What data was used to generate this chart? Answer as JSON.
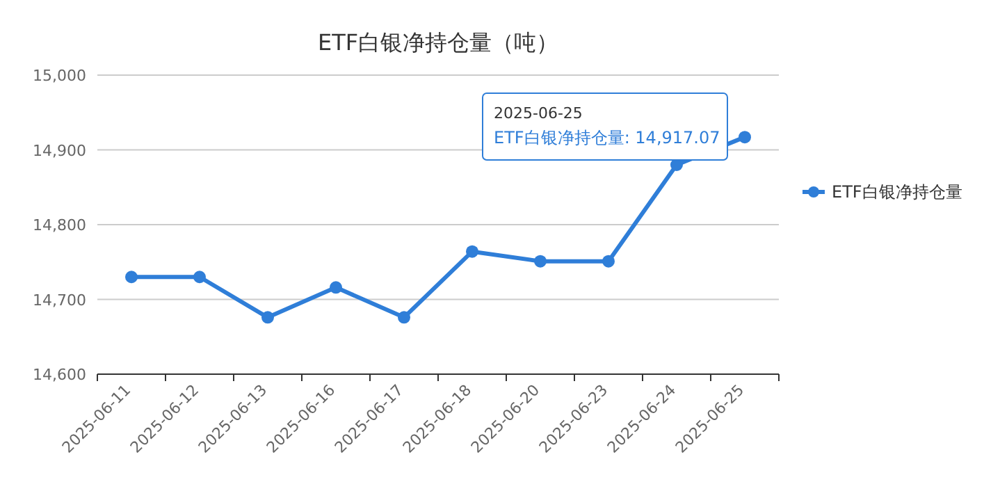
{
  "chart_data": {
    "type": "line",
    "title": "ETF白银净持仓量（吨）",
    "categories": [
      "2025-06-11",
      "2025-06-12",
      "2025-06-13",
      "2025-06-16",
      "2025-06-17",
      "2025-06-18",
      "2025-06-20",
      "2025-06-23",
      "2025-06-24",
      "2025-06-25"
    ],
    "series": [
      {
        "name": "ETF白银净持仓量",
        "color": "#2f7ed8",
        "values": [
          14730,
          14730,
          14676,
          14716,
          14676,
          14764,
          14751,
          14751,
          14880,
          14917.07
        ]
      }
    ],
    "ylim": [
      14600,
      15000
    ],
    "yticks": [
      {
        "value": 14600,
        "label": "14,600"
      },
      {
        "value": 14700,
        "label": "14,700"
      },
      {
        "value": 14800,
        "label": "14,800"
      },
      {
        "value": 14900,
        "label": "14,900"
      },
      {
        "value": 15000,
        "label": "15,000"
      }
    ],
    "grid": "y",
    "legend": "right",
    "marker": "circle",
    "line_style": "solid",
    "annotations": [
      "2025-06-25",
      "ETF白银净持仓量: 14,917.07"
    ]
  }
}
